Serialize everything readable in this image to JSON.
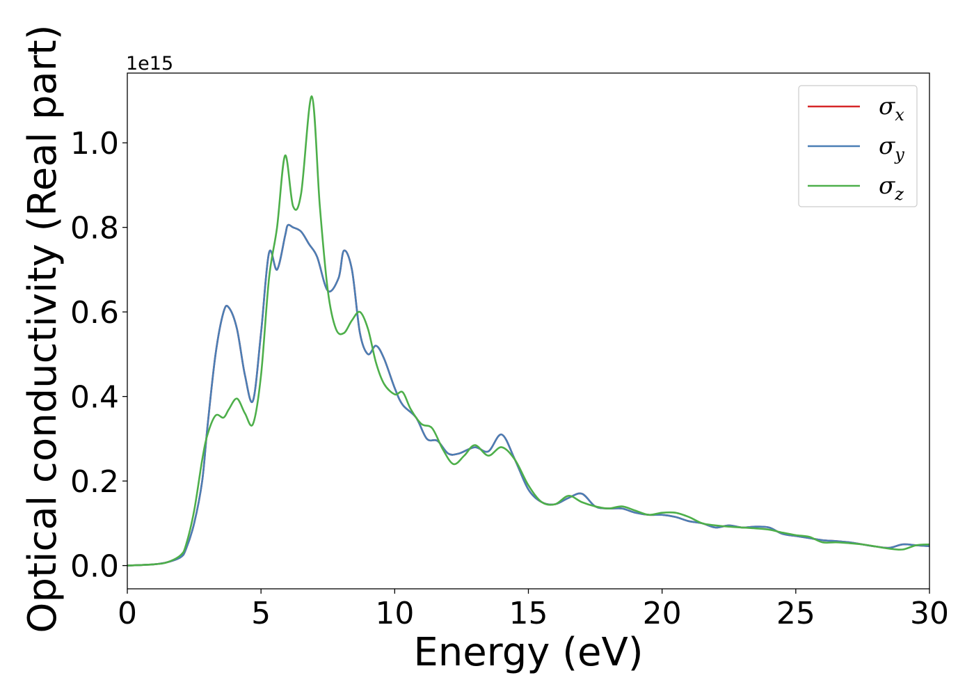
{
  "chart_data": {
    "type": "line",
    "title": "",
    "xlabel": "Energy (eV)",
    "ylabel": "Optical conductivity (Real part)",
    "y_offset_text": "1e15",
    "xlim": [
      0,
      30
    ],
    "ylim": [
      -0.055,
      1.165
    ],
    "x_ticks": [
      0,
      5,
      10,
      15,
      20,
      25,
      30
    ],
    "x_tick_labels": [
      "0",
      "5",
      "10",
      "15",
      "20",
      "25",
      "30"
    ],
    "y_ticks": [
      0.0,
      0.2,
      0.4,
      0.6,
      0.8,
      1.0
    ],
    "y_tick_labels": [
      "0.0",
      "0.2",
      "0.4",
      "0.6",
      "0.8",
      "1.0"
    ],
    "grid": false,
    "legend_position": "upper-right",
    "series": [
      {
        "name": "σx",
        "legend_symbol": "σ",
        "legend_subscript": "x",
        "color": "#d62728",
        "x": [
          0,
          1,
          1.5,
          2,
          2.2,
          2.5,
          2.8,
          3.0,
          3.3,
          3.6,
          3.8,
          4.1,
          4.4,
          4.7,
          5.0,
          5.3,
          5.6,
          5.9,
          6.0,
          6.2,
          6.5,
          6.8,
          7.1,
          7.5,
          7.9,
          8.1,
          8.4,
          8.7,
          9.0,
          9.3,
          9.6,
          10.0,
          10.3,
          10.8,
          11.2,
          11.6,
          12.0,
          12.4,
          13.0,
          13.5,
          14.0,
          14.5,
          15.0,
          15.5,
          16.0,
          16.5,
          17.0,
          17.5,
          18.0,
          18.5,
          19.0,
          19.5,
          20.0,
          20.5,
          21.0,
          21.5,
          22.0,
          22.5,
          23.0,
          23.5,
          24.0,
          24.5,
          25.0,
          25.5,
          26.0,
          26.5,
          27.0,
          27.5,
          28.0,
          28.5,
          29.0,
          29.5,
          30.0
        ],
        "y": [
          0,
          0.003,
          0.008,
          0.02,
          0.04,
          0.1,
          0.2,
          0.33,
          0.5,
          0.6,
          0.61,
          0.56,
          0.45,
          0.39,
          0.55,
          0.74,
          0.7,
          0.78,
          0.805,
          0.8,
          0.79,
          0.76,
          0.73,
          0.65,
          0.68,
          0.745,
          0.7,
          0.55,
          0.5,
          0.52,
          0.49,
          0.42,
          0.38,
          0.35,
          0.3,
          0.295,
          0.265,
          0.265,
          0.28,
          0.27,
          0.31,
          0.25,
          0.18,
          0.15,
          0.145,
          0.16,
          0.17,
          0.14,
          0.135,
          0.135,
          0.125,
          0.12,
          0.12,
          0.115,
          0.105,
          0.1,
          0.09,
          0.095,
          0.09,
          0.092,
          0.09,
          0.075,
          0.07,
          0.065,
          0.06,
          0.058,
          0.055,
          0.05,
          0.045,
          0.042,
          0.05,
          0.048,
          0.046
        ]
      },
      {
        "name": "σy",
        "legend_symbol": "σ",
        "legend_subscript": "y",
        "color": "#4a7eb5",
        "x": [
          0,
          1,
          1.5,
          2,
          2.2,
          2.5,
          2.8,
          3.0,
          3.3,
          3.6,
          3.8,
          4.1,
          4.4,
          4.7,
          5.0,
          5.3,
          5.6,
          5.9,
          6.0,
          6.2,
          6.5,
          6.8,
          7.1,
          7.5,
          7.9,
          8.1,
          8.4,
          8.7,
          9.0,
          9.3,
          9.6,
          10.0,
          10.3,
          10.8,
          11.2,
          11.6,
          12.0,
          12.4,
          13.0,
          13.5,
          14.0,
          14.5,
          15.0,
          15.5,
          16.0,
          16.5,
          17.0,
          17.5,
          18.0,
          18.5,
          19.0,
          19.5,
          20.0,
          20.5,
          21.0,
          21.5,
          22.0,
          22.5,
          23.0,
          23.5,
          24.0,
          24.5,
          25.0,
          25.5,
          26.0,
          26.5,
          27.0,
          27.5,
          28.0,
          28.5,
          29.0,
          29.5,
          30.0
        ],
        "y": [
          0,
          0.003,
          0.008,
          0.02,
          0.04,
          0.1,
          0.2,
          0.33,
          0.5,
          0.6,
          0.61,
          0.56,
          0.45,
          0.39,
          0.55,
          0.74,
          0.7,
          0.78,
          0.805,
          0.8,
          0.79,
          0.76,
          0.73,
          0.65,
          0.68,
          0.745,
          0.7,
          0.55,
          0.5,
          0.52,
          0.49,
          0.42,
          0.38,
          0.35,
          0.3,
          0.295,
          0.265,
          0.265,
          0.28,
          0.27,
          0.31,
          0.25,
          0.18,
          0.15,
          0.145,
          0.16,
          0.17,
          0.14,
          0.135,
          0.135,
          0.125,
          0.12,
          0.12,
          0.115,
          0.105,
          0.1,
          0.09,
          0.095,
          0.09,
          0.092,
          0.09,
          0.075,
          0.07,
          0.065,
          0.06,
          0.058,
          0.055,
          0.05,
          0.045,
          0.042,
          0.05,
          0.048,
          0.046
        ]
      },
      {
        "name": "σz",
        "legend_symbol": "σ",
        "legend_subscript": "z",
        "color": "#4daf4a",
        "x": [
          0,
          1,
          1.5,
          2,
          2.2,
          2.5,
          2.8,
          3.0,
          3.3,
          3.6,
          3.8,
          4.1,
          4.4,
          4.7,
          5.0,
          5.3,
          5.6,
          5.9,
          6.2,
          6.5,
          6.9,
          7.2,
          7.5,
          7.8,
          8.1,
          8.4,
          8.7,
          9.0,
          9.3,
          9.6,
          10.0,
          10.3,
          10.6,
          11.0,
          11.4,
          11.8,
          12.2,
          12.6,
          13.0,
          13.5,
          14.0,
          14.5,
          15.0,
          15.5,
          16.0,
          16.5,
          17.0,
          17.5,
          18.0,
          18.5,
          19.0,
          19.5,
          20.0,
          20.5,
          21.0,
          21.5,
          22.0,
          22.5,
          23.0,
          23.5,
          24.0,
          24.5,
          25.0,
          25.5,
          26.0,
          26.5,
          27.0,
          27.5,
          28.0,
          28.5,
          29.0,
          29.5,
          30.0
        ],
        "y": [
          0,
          0.003,
          0.008,
          0.025,
          0.05,
          0.13,
          0.25,
          0.31,
          0.355,
          0.35,
          0.37,
          0.395,
          0.36,
          0.335,
          0.45,
          0.68,
          0.8,
          0.97,
          0.85,
          0.88,
          1.11,
          0.85,
          0.65,
          0.56,
          0.55,
          0.58,
          0.6,
          0.56,
          0.48,
          0.43,
          0.405,
          0.41,
          0.37,
          0.335,
          0.325,
          0.275,
          0.24,
          0.26,
          0.285,
          0.26,
          0.28,
          0.25,
          0.19,
          0.15,
          0.145,
          0.165,
          0.15,
          0.14,
          0.135,
          0.14,
          0.13,
          0.12,
          0.125,
          0.125,
          0.115,
          0.1,
          0.095,
          0.092,
          0.09,
          0.088,
          0.085,
          0.078,
          0.072,
          0.068,
          0.055,
          0.055,
          0.053,
          0.05,
          0.045,
          0.04,
          0.038,
          0.048,
          0.05
        ]
      }
    ]
  }
}
